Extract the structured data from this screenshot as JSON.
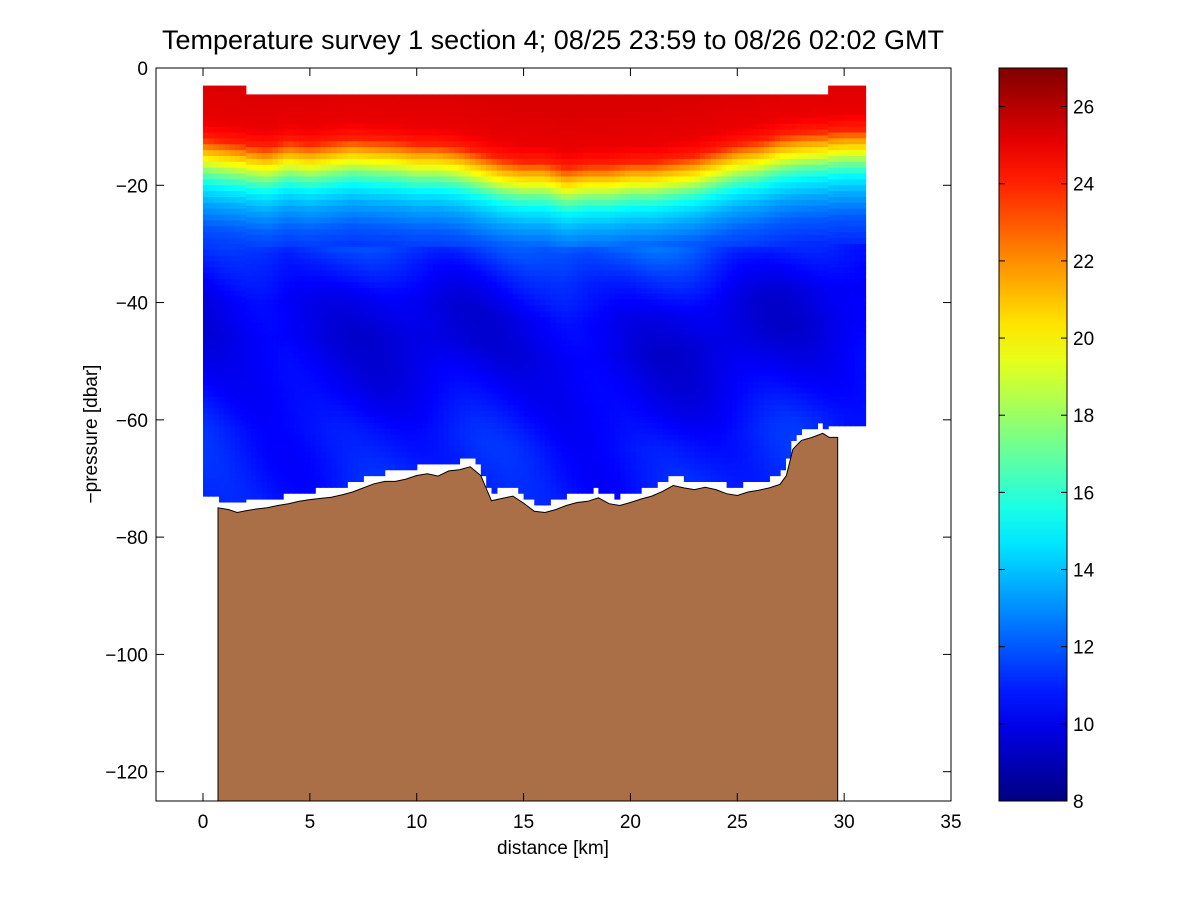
{
  "chart_data": {
    "type": "heatmap",
    "title": "Temperature survey 1 section 4; 08/25 23:59 to 08/26 02:02 GMT",
    "xlabel": "distance [km]",
    "ylabel": "−pressure [dbar]",
    "xlim": [
      -2.2,
      35
    ],
    "ylim": [
      -125,
      0
    ],
    "xticks": [
      0,
      5,
      10,
      15,
      20,
      25,
      30,
      35
    ],
    "yticks": [
      0,
      -20,
      -40,
      -60,
      -80,
      -100,
      -120
    ],
    "xtick_labels": [
      "0",
      "5",
      "10",
      "15",
      "20",
      "25",
      "30",
      "35"
    ],
    "ytick_labels": [
      "0",
      "−20",
      "−40",
      "−60",
      "−80",
      "−100",
      "−120"
    ],
    "colorbar": {
      "min": 8,
      "max": 27,
      "ticks": [
        8,
        10,
        12,
        14,
        16,
        18,
        20,
        22,
        24,
        26
      ],
      "tick_labels": [
        "8",
        "10",
        "12",
        "14",
        "16",
        "18",
        "20",
        "22",
        "24",
        "26"
      ],
      "colormap": "jet"
    },
    "bathymetry_color": "#ab6f48",
    "data_extent": {
      "x": [
        0,
        30.8
      ],
      "surface": -3
    },
    "temperature_profile": [
      {
        "depth": -4,
        "temp": 25.3
      },
      {
        "depth": -10,
        "temp": 25.0
      },
      {
        "depth": -13,
        "temp": 24.0
      },
      {
        "depth": -15,
        "temp": 21.5
      },
      {
        "depth": -17,
        "temp": 19.5
      },
      {
        "depth": -19,
        "temp": 17.0
      },
      {
        "depth": -21,
        "temp": 15.0
      },
      {
        "depth": -24,
        "temp": 13.5
      },
      {
        "depth": -28,
        "temp": 12.0
      },
      {
        "depth": -33,
        "temp": 11.0
      },
      {
        "depth": -40,
        "temp": 10.0
      },
      {
        "depth": -46,
        "temp": 9.8
      },
      {
        "depth": -55,
        "temp": 10.3
      },
      {
        "depth": -62,
        "temp": 10.8
      },
      {
        "depth": -75,
        "temp": 11.0
      }
    ],
    "thermocline_depth": {
      "x": [
        0,
        1,
        2,
        3,
        4,
        5,
        6,
        7,
        8,
        9,
        10,
        11,
        12,
        13,
        14,
        15,
        16,
        17,
        18,
        19,
        20,
        21,
        22,
        23,
        24,
        25,
        26,
        27,
        28,
        29,
        30
      ],
      "y": [
        -17,
        -17.5,
        -18,
        -18.5,
        -17.5,
        -18,
        -17.5,
        -17,
        -17.3,
        -17.5,
        -18,
        -18,
        -18.5,
        -19.5,
        -20.5,
        -21,
        -21,
        -22,
        -21.5,
        -21.5,
        -21,
        -21,
        -20.5,
        -20,
        -19,
        -18,
        -17.5,
        -16.5,
        -16,
        -15.8,
        -15.5
      ]
    },
    "bathymetry": {
      "x": [
        0.7,
        1.2,
        1.6,
        2.0,
        2.5,
        3.0,
        3.5,
        4.0,
        4.5,
        5.0,
        5.5,
        6.0,
        6.5,
        7.0,
        7.5,
        8.0,
        8.5,
        9.0,
        9.5,
        10.0,
        10.5,
        11.0,
        11.5,
        12.0,
        12.5,
        13.0,
        13.5,
        14.0,
        14.5,
        15.0,
        15.5,
        16.0,
        16.5,
        17.0,
        17.5,
        18.0,
        18.5,
        19.0,
        19.5,
        20.0,
        20.5,
        21.0,
        21.5,
        22.0,
        22.5,
        23.0,
        23.5,
        24.0,
        24.5,
        25.0,
        25.5,
        26.0,
        26.5,
        27.0,
        27.3,
        27.6,
        28.0,
        28.5,
        29.0,
        29.3,
        29.7
      ],
      "y": [
        -75,
        -75.3,
        -75.8,
        -75.5,
        -75.2,
        -75.0,
        -74.6,
        -74.3,
        -73.9,
        -73.6,
        -73.4,
        -73.2,
        -72.8,
        -72.3,
        -71.6,
        -70.9,
        -70.5,
        -70.5,
        -70.1,
        -69.5,
        -69.2,
        -69.6,
        -68.7,
        -68.5,
        -68.0,
        -69.5,
        -73.8,
        -73.4,
        -73.0,
        -74.2,
        -75.6,
        -75.8,
        -75.3,
        -74.6,
        -74.1,
        -73.9,
        -73.3,
        -74.3,
        -74.6,
        -74.1,
        -73.5,
        -73.0,
        -72.2,
        -71.2,
        -71.6,
        -71.9,
        -71.5,
        -71.9,
        -72.6,
        -72.9,
        -72.3,
        -72.0,
        -71.6,
        -71.0,
        -69.5,
        -65.0,
        -63.5,
        -63.0,
        -62.3,
        -63.0,
        -63.0
      ]
    }
  }
}
